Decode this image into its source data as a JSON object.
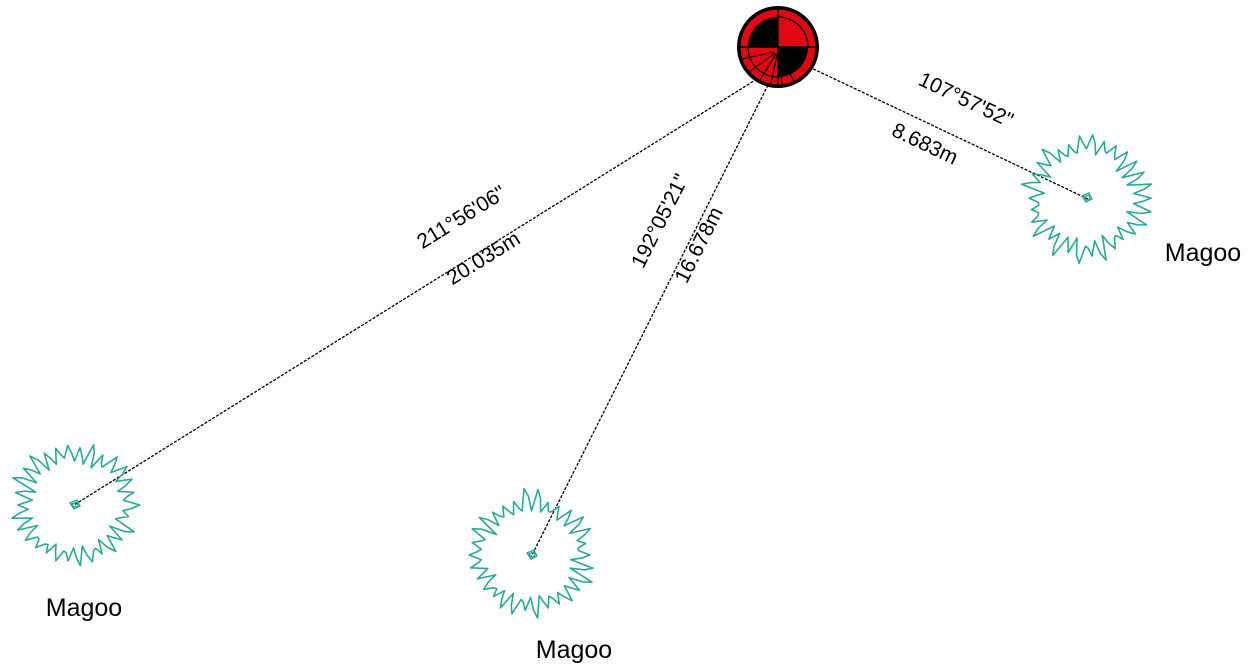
{
  "station": {
    "icon": "survey-target-icon",
    "colors": {
      "fill": "#e30613",
      "dark": "#000000"
    }
  },
  "measurements": [
    {
      "bearing": "211°56'06\"",
      "distance": "20.035m"
    },
    {
      "bearing": "192°05'21\"",
      "distance": "16.678m"
    },
    {
      "bearing": "107°57'52\"",
      "distance": "8.683m"
    }
  ],
  "trees": [
    {
      "label": "Magoo",
      "icon": "tree-canopy-icon"
    },
    {
      "label": "Magoo",
      "icon": "tree-canopy-icon"
    },
    {
      "label": "Magoo",
      "icon": "tree-canopy-icon"
    }
  ],
  "colors": {
    "tree": "#2aa89a",
    "line": "#000000"
  }
}
